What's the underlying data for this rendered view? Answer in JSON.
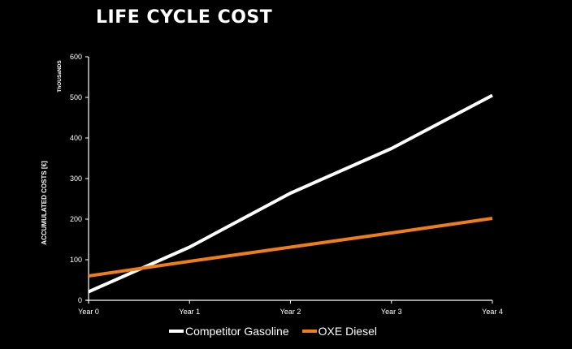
{
  "chart_data": {
    "type": "line",
    "title": "LIFE CYCLE COST",
    "ylabel": "ACCUMULATED COSTS   [€]",
    "yunit": "ThOUSaNDS",
    "xlabel": "",
    "categories": [
      "Year 0",
      "Year 1",
      "Year 2",
      "Year 3",
      "Year 4"
    ],
    "ylim": [
      0,
      600
    ],
    "yticks": [
      0,
      100,
      200,
      300,
      400,
      500,
      600
    ],
    "grid": false,
    "legend_position": "bottom",
    "series": [
      {
        "name": "Competitor Gasoline",
        "color": "#ffffff",
        "values": [
          21,
          131,
          264,
          374,
          505
        ]
      },
      {
        "name": "OXE Diesel",
        "color": "#ef7d1a",
        "values": [
          60,
          96,
          131,
          166,
          202
        ]
      }
    ]
  }
}
